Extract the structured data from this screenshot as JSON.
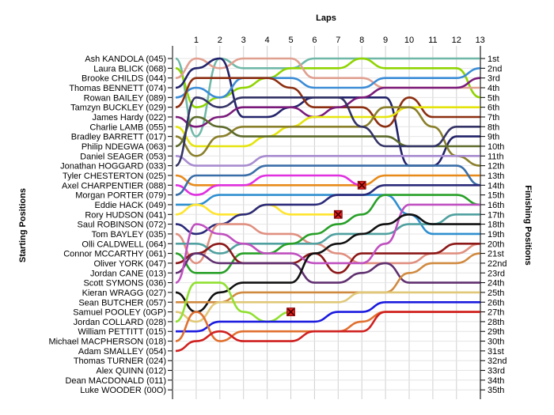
{
  "chart_data": {
    "type": "line",
    "top_axis_label": "Laps",
    "left_axis_label": "Starting Positions",
    "right_axis_label": "Finishing Positions",
    "laps": [
      1,
      2,
      3,
      4,
      5,
      6,
      7,
      8,
      9,
      10,
      11,
      12,
      13
    ],
    "starting_grid": [
      "Ash KANDOLA (045)",
      "Laura BLICK (068)",
      "Brooke CHILDS (044)",
      "Thomas BENNETT (074)",
      "Rowan BAILEY (089)",
      "Tamzyn BUCKLEY (029)",
      "James Hardy (022)",
      "Charlie LAMB (055)",
      "Bradley BARRETT (017)",
      "Philip NDEGWA (063)",
      "Daniel SEAGER (053)",
      "Jonathan HOGGARD (033)",
      "Tyler CHESTERTON (025)",
      "Axel CHARPENTIER (088)",
      "Morgan PORTER (079)",
      "Eddie HACK (049)",
      "Rory HUDSON (041)",
      "Saul ROBINSON (072)",
      "Tom BAYLEY (035)",
      "Olli CALDWELL (064)",
      "Connor MCCARTHY (061)",
      "Oliver YORK (047)",
      "Jordan CANE (013)",
      "Scott SYMONS (036)",
      "Kieran WRAGG (027)",
      "Sean BUTCHER (057)",
      "Samuel POOLEY (0GP)",
      "Jordan COLLARD (028)",
      "William PETTITT (015)",
      "Michael MACPHERSON (018)",
      "Adam SMALLEY (054)",
      "Thomas TURNER (024)",
      "Alex QUINN (012)",
      "Dean MACDONALD (011)",
      "Luke WOODER (00O)"
    ],
    "finishing_positions": [
      "1st",
      "2nd",
      "3rd",
      "4th",
      "5th",
      "6th",
      "7th",
      "8th",
      "9th",
      "10th",
      "11th",
      "12th",
      "13th",
      "14th",
      "15th",
      "16th",
      "17th",
      "18th",
      "19th",
      "20th",
      "21st",
      "22nd",
      "23rd",
      "24th",
      "25th",
      "26th",
      "27th",
      "28th",
      "29th",
      "30th",
      "31st",
      "32nd",
      "33rd",
      "34th",
      "35th"
    ],
    "series": [
      {
        "color": "#6fb8a8",
        "start": 1,
        "positions": [
          9,
          1,
          2,
          2,
          2,
          1,
          1,
          1,
          1,
          1,
          1,
          1,
          1
        ]
      },
      {
        "color": "#8fd400",
        "start": 2,
        "positions": [
          6,
          5,
          4,
          3,
          2,
          2,
          2,
          1,
          2,
          2,
          2,
          2,
          5
        ]
      },
      {
        "color": "#e0a090",
        "start": 3,
        "positions": [
          1,
          2,
          1,
          1,
          1,
          3,
          3,
          3,
          4,
          4,
          4,
          4,
          4
        ]
      },
      {
        "color": "#22226a",
        "start": 4,
        "positions": [
          2,
          1,
          7,
          7,
          6,
          5,
          5,
          5,
          5,
          12,
          12,
          9,
          9
        ]
      },
      {
        "color": "#3a8cd6",
        "start": 5,
        "positions": [
          4,
          5,
          3,
          3,
          3,
          4,
          4,
          4,
          3,
          3,
          3,
          3,
          2
        ]
      },
      {
        "color": "#8c2e10",
        "start": 6,
        "positions": [
          3,
          3,
          3,
          3,
          4,
          6,
          6,
          6,
          8,
          5,
          7,
          7,
          7
        ]
      },
      {
        "color": "#7a1a7a",
        "start": 7,
        "positions": [
          8,
          7,
          6,
          6,
          6,
          7,
          6,
          5,
          4,
          4,
          4,
          4,
          3
        ]
      },
      {
        "color": "#e4e40c",
        "start": 8,
        "positions": [
          10,
          10,
          10,
          9,
          8,
          7,
          7,
          7,
          7,
          6,
          6,
          6,
          6
        ]
      },
      {
        "color": "#8a7f2a",
        "start": 9,
        "positions": [
          11,
          9,
          8,
          8,
          8,
          8,
          8,
          8,
          6,
          6,
          8,
          11,
          12
        ]
      },
      {
        "color": "#5c6a2a",
        "start": 10,
        "positions": [
          7,
          8,
          9,
          9,
          9,
          9,
          9,
          9,
          9,
          10,
          10,
          10,
          10
        ]
      },
      {
        "color": "#a88cd0",
        "start": 11,
        "positions": [
          12,
          12,
          12,
          11,
          11,
          11,
          11,
          11,
          11,
          11,
          11,
          11,
          11
        ]
      },
      {
        "color": "#333366",
        "start": 12,
        "positions": [
          5,
          6,
          5,
          5,
          5,
          5,
          5,
          8,
          10,
          10,
          10,
          8,
          8
        ]
      },
      {
        "color": "#e88a1a",
        "start": 13,
        "positions": [
          14,
          14,
          14,
          14,
          14,
          14,
          14,
          14,
          13,
          13,
          13,
          13,
          13
        ]
      },
      {
        "color": "#e030e0",
        "start": 14,
        "positions": [
          15,
          14,
          14,
          13,
          13,
          13,
          13,
          14
        ]
      },
      {
        "color": "#3a6ea8",
        "start": 15,
        "positions": [
          13,
          13,
          13,
          12,
          12,
          12,
          12,
          12,
          12,
          12,
          12,
          12,
          14
        ]
      },
      {
        "color": "#2f8fd0",
        "start": 16,
        "positions": [
          16,
          15,
          15,
          15,
          15,
          15,
          15,
          15,
          15,
          17,
          19,
          19,
          19
        ]
      },
      {
        "color": "#ffe42e",
        "start": 17,
        "positions": [
          16,
          17,
          17,
          16,
          17,
          17,
          17
        ]
      },
      {
        "color": "#2a2a7a",
        "start": 18,
        "positions": [
          19,
          18,
          17,
          16,
          16,
          16,
          15,
          15,
          14,
          14,
          14,
          14,
          14
        ]
      },
      {
        "color": "#e09080",
        "start": 19,
        "positions": [
          22,
          18,
          18,
          19,
          19,
          20,
          21,
          22,
          22,
          22,
          21,
          21,
          20
        ]
      },
      {
        "color": "#50a0a0",
        "start": 20,
        "positions": [
          20,
          21,
          20,
          20,
          20,
          20,
          19,
          19,
          19,
          18,
          18,
          17,
          17
        ]
      },
      {
        "color": "#28a028",
        "start": 21,
        "positions": [
          23,
          23,
          21,
          21,
          20,
          19,
          18,
          17,
          15,
          15,
          15,
          15,
          16
        ]
      },
      {
        "color": "#8c1818",
        "start": 22,
        "positions": [
          21,
          20,
          22,
          22,
          22,
          21,
          23,
          21,
          21,
          21,
          21,
          20,
          20
        ]
      },
      {
        "color": "#603070",
        "start": 23,
        "positions": [
          21,
          22,
          22,
          22,
          22,
          24,
          24,
          23,
          22,
          24,
          24,
          24,
          24
        ]
      },
      {
        "color": "#c050c0",
        "start": 24,
        "positions": [
          18,
          19,
          20,
          21,
          21,
          22,
          22,
          22,
          20,
          16,
          16,
          16,
          16
        ]
      },
      {
        "color": "#111111",
        "start": 25,
        "positions": [
          27,
          25,
          24,
          24,
          24,
          21,
          20,
          19,
          18,
          17,
          18,
          18,
          18
        ]
      },
      {
        "color": "#d08a40",
        "start": 26,
        "positions": [
          26,
          26,
          25,
          25,
          25,
          25,
          25,
          25,
          25,
          23,
          22,
          22,
          21
        ]
      },
      {
        "color": "#e0c878",
        "start": 27,
        "positions": [
          28,
          26,
          26,
          26,
          26,
          26,
          26,
          25,
          25,
          25,
          25,
          25,
          25
        ]
      },
      {
        "color": "#90e030",
        "start": 28,
        "positions": [
          24,
          24,
          27,
          28,
          27
        ]
      },
      {
        "color": "#1a1ae0",
        "start": 29,
        "positions": [
          29,
          28,
          28,
          28,
          28,
          28,
          27,
          27,
          26,
          26,
          26,
          26,
          26
        ]
      },
      {
        "color": "#e07030",
        "start": 30,
        "positions": [
          27,
          30,
          29,
          29,
          29,
          29,
          29,
          28,
          27,
          27,
          27,
          27,
          27
        ]
      },
      {
        "color": "#d02020",
        "start": 31,
        "positions": [
          30,
          29,
          30,
          30,
          30,
          29,
          29,
          29,
          27,
          27,
          27,
          27,
          27
        ]
      }
    ],
    "retirements": [
      {
        "lap": 8,
        "position": 14
      },
      {
        "lap": 7,
        "position": 17
      },
      {
        "lap": 5,
        "position": 27
      }
    ],
    "grid": true
  }
}
